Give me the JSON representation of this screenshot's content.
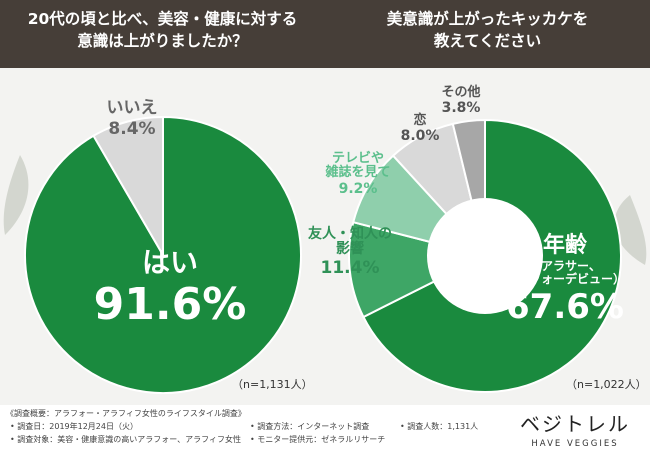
{
  "header": {
    "q1_line1": "20代の頃と比べ、美容・健康に対する",
    "q1_line2": "意識は上がりましたか？",
    "q2_line1": "美意識が上がったキッカケを",
    "q2_line2": "教えてください"
  },
  "colors": {
    "header_bg": "#463e38",
    "green_dark": "#1a8a3e",
    "green_mid": "#3ea666",
    "green_light": "#8fcfac",
    "gray_light": "#d9d9d9",
    "gray_mid": "#a7a7a7"
  },
  "chart_data": [
    {
      "type": "pie",
      "slices": [
        {
          "label": "はい",
          "value": 91.6,
          "value_text": "91.6%",
          "color": "#1a8a3e"
        },
        {
          "label": "いいえ",
          "value": 8.4,
          "value_text": "8.4%",
          "color": "#d9d9d9"
        }
      ],
      "sample": "（n=1,131人）"
    },
    {
      "type": "pie",
      "donut": true,
      "slices": [
        {
          "label_lines": [
            "年齢",
            "（アラサー、",
            "アラフォーデビュー）"
          ],
          "value": 67.6,
          "value_text": "67.6%",
          "color": "#1a8a3e"
        },
        {
          "label_lines": [
            "友人・知人の",
            "影響"
          ],
          "value": 11.4,
          "value_text": "11.4%",
          "color": "#3ea666"
        },
        {
          "label_lines": [
            "テレビや",
            "雑誌を見て"
          ],
          "value": 9.2,
          "value_text": "9.2%",
          "color": "#8fcfac"
        },
        {
          "label_lines": [
            "恋"
          ],
          "value": 8.0,
          "value_text": "8.0%",
          "color": "#d9d9d9"
        },
        {
          "label_lines": [
            "その他"
          ],
          "value": 3.8,
          "value_text": "3.8%",
          "color": "#a7a7a7"
        }
      ],
      "sample": "（n=1,022人）"
    }
  ],
  "footer": {
    "title": "《調査概要：アラフォー・アラフィフ女性のライフスタイル調査》",
    "date": "• 調査日：2019年12月24日（火）",
    "target": "• 調査対象：美容・健康意識の高いアラフォー、アラフィフ女性",
    "method": "• 調査方法：インターネット調査",
    "provider": "• モニター提供元：ゼネラルリサーチ",
    "count": "• 調査人数：1,131人"
  },
  "brand": {
    "logo": "ベジトレル",
    "sub": "HAVE VEGGIES"
  }
}
